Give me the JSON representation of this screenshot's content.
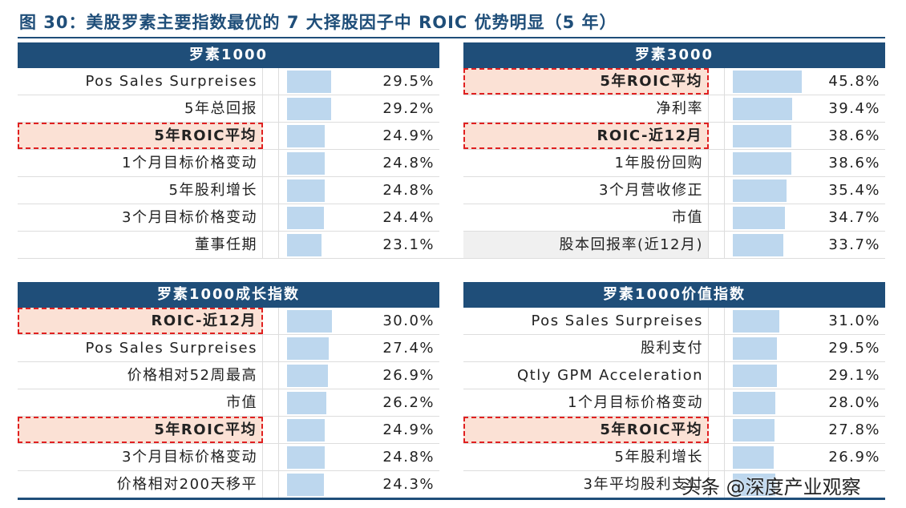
{
  "title": "图 30：美股罗素主要指数最优的 7 大择股因子中 ROIC 优势明显（5 年）",
  "watermark": "头条 @深度产业观察",
  "colors": {
    "header": "#1f4e79",
    "bar": "#bdd7ee",
    "highlight_fill": "#fbe1d5",
    "highlight_border": "#e02020"
  },
  "chart_data": [
    {
      "type": "table",
      "title": "罗素1000",
      "rows": [
        {
          "factor": "Pos Sales Surpreises",
          "value": 29.5,
          "display": "29.5%"
        },
        {
          "factor": "5年总回报",
          "value": 29.2,
          "display": "29.2%"
        },
        {
          "factor": "5年ROIC平均",
          "value": 24.9,
          "display": "24.9%",
          "highlight": true
        },
        {
          "factor": "1个月目标价格变动",
          "value": 24.8,
          "display": "24.8%"
        },
        {
          "factor": "5年股利增长",
          "value": 24.8,
          "display": "24.8%"
        },
        {
          "factor": "3个月目标价格变动",
          "value": 24.4,
          "display": "24.4%"
        },
        {
          "factor": "董事任期",
          "value": 23.1,
          "display": "23.1%"
        }
      ]
    },
    {
      "type": "table",
      "title": "罗素3000",
      "rows": [
        {
          "factor": "5年ROIC平均",
          "value": 45.8,
          "display": "45.8%",
          "highlight": true
        },
        {
          "factor": "净利率",
          "value": 39.4,
          "display": "39.4%"
        },
        {
          "factor": "ROIC-近12月",
          "value": 38.6,
          "display": "38.6%",
          "highlight": true
        },
        {
          "factor": "1年股份回购",
          "value": 38.6,
          "display": "38.6%"
        },
        {
          "factor": "3个月营收修正",
          "value": 35.4,
          "display": "35.4%"
        },
        {
          "factor": "市值",
          "value": 34.7,
          "display": "34.7%"
        },
        {
          "factor": "股本回报率(近12月)",
          "value": 33.7,
          "display": "33.7%",
          "grey": true
        }
      ]
    },
    {
      "type": "table",
      "title": "罗素1000成长指数",
      "rows": [
        {
          "factor": "ROIC-近12月",
          "value": 30.0,
          "display": "30.0%",
          "highlight": true
        },
        {
          "factor": "Pos Sales Surpreises",
          "value": 27.4,
          "display": "27.4%"
        },
        {
          "factor": "价格相对52周最高",
          "value": 26.9,
          "display": "26.9%"
        },
        {
          "factor": "市值",
          "value": 26.2,
          "display": "26.2%"
        },
        {
          "factor": "5年ROIC平均",
          "value": 24.9,
          "display": "24.9%",
          "highlight": true
        },
        {
          "factor": "3个月目标价格变动",
          "value": 24.8,
          "display": "24.8%"
        },
        {
          "factor": "价格相对200天移平",
          "value": 24.3,
          "display": "24.3%"
        }
      ]
    },
    {
      "type": "table",
      "title": "罗素1000价值指数",
      "rows": [
        {
          "factor": "Pos Sales Surpreises",
          "value": 31.0,
          "display": "31.0%"
        },
        {
          "factor": "股利支付",
          "value": 29.5,
          "display": "29.5%"
        },
        {
          "factor": "Qtly GPM Acceleration",
          "value": 29.1,
          "display": "29.1%"
        },
        {
          "factor": "1个月目标价格变动",
          "value": 28.0,
          "display": "28.0%"
        },
        {
          "factor": "5年ROIC平均",
          "value": 27.8,
          "display": "27.8%",
          "highlight": true
        },
        {
          "factor": "5年股利增长",
          "value": 26.9,
          "display": "26.9%"
        },
        {
          "factor": "3年平均股利支付",
          "value": null,
          "display": ""
        }
      ]
    }
  ]
}
